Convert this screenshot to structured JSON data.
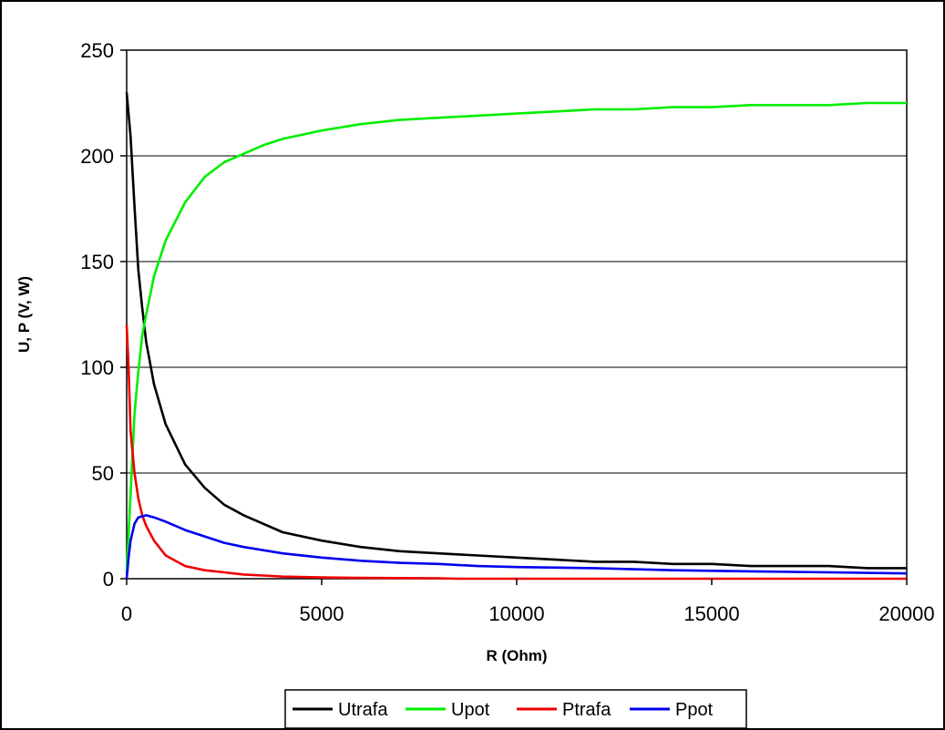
{
  "chart_data": {
    "type": "line",
    "title": "",
    "xlabel": "R (Ohm)",
    "ylabel": "U, P (V, W)",
    "xlim": [
      0,
      20000
    ],
    "ylim": [
      0,
      250
    ],
    "x_ticks": [
      "0",
      "5000",
      "10000",
      "15000",
      "20000"
    ],
    "y_ticks": [
      "0",
      "50",
      "100",
      "150",
      "200",
      "250"
    ],
    "grid": "horizontal",
    "legend_position": "bottom",
    "series": [
      {
        "name": "Utrafa",
        "color": "#000000",
        "points": [
          [
            0,
            230
          ],
          [
            100,
            209
          ],
          [
            200,
            176
          ],
          [
            300,
            146
          ],
          [
            400,
            128
          ],
          [
            500,
            112
          ],
          [
            700,
            92
          ],
          [
            1000,
            73
          ],
          [
            1500,
            54
          ],
          [
            2000,
            43
          ],
          [
            2500,
            35
          ],
          [
            3000,
            30
          ],
          [
            3500,
            26
          ],
          [
            4000,
            22
          ],
          [
            5000,
            18
          ],
          [
            6000,
            15
          ],
          [
            7000,
            13
          ],
          [
            8000,
            12
          ],
          [
            9000,
            11
          ],
          [
            10000,
            10
          ],
          [
            11000,
            9
          ],
          [
            12000,
            8
          ],
          [
            13000,
            8
          ],
          [
            14000,
            7
          ],
          [
            15000,
            7
          ],
          [
            16000,
            6
          ],
          [
            17000,
            6
          ],
          [
            18000,
            6
          ],
          [
            19000,
            5
          ],
          [
            20000,
            5
          ]
        ]
      },
      {
        "name": "Upot",
        "color": "#00ee00",
        "points": [
          [
            0,
            3
          ],
          [
            100,
            40
          ],
          [
            200,
            78
          ],
          [
            300,
            98
          ],
          [
            400,
            115
          ],
          [
            500,
            125
          ],
          [
            700,
            143
          ],
          [
            1000,
            160
          ],
          [
            1500,
            178
          ],
          [
            2000,
            190
          ],
          [
            2500,
            197
          ],
          [
            3000,
            201
          ],
          [
            3500,
            205
          ],
          [
            4000,
            208
          ],
          [
            5000,
            212
          ],
          [
            6000,
            215
          ],
          [
            7000,
            217
          ],
          [
            8000,
            218
          ],
          [
            9000,
            219
          ],
          [
            10000,
            220
          ],
          [
            11000,
            221
          ],
          [
            12000,
            222
          ],
          [
            13000,
            222
          ],
          [
            14000,
            223
          ],
          [
            15000,
            223
          ],
          [
            16000,
            224
          ],
          [
            17000,
            224
          ],
          [
            18000,
            224
          ],
          [
            19000,
            225
          ],
          [
            20000,
            225
          ]
        ]
      },
      {
        "name": "Ptrafa",
        "color": "#ee0000",
        "points": [
          [
            0,
            120
          ],
          [
            50,
            100
          ],
          [
            100,
            70
          ],
          [
            200,
            50
          ],
          [
            300,
            38
          ],
          [
            400,
            30
          ],
          [
            500,
            25
          ],
          [
            700,
            18
          ],
          [
            1000,
            11
          ],
          [
            1500,
            6
          ],
          [
            2000,
            4
          ],
          [
            2500,
            3
          ],
          [
            3000,
            2
          ],
          [
            3500,
            1.5
          ],
          [
            4000,
            1
          ],
          [
            5000,
            0.6
          ],
          [
            6000,
            0.4
          ],
          [
            7000,
            0.3
          ],
          [
            8000,
            0.2
          ],
          [
            8500,
            0
          ],
          [
            10000,
            0
          ],
          [
            15000,
            0
          ],
          [
            20000,
            0
          ]
        ]
      },
      {
        "name": "Ppot",
        "color": "#0000ee",
        "points": [
          [
            0,
            0
          ],
          [
            50,
            10
          ],
          [
            100,
            18
          ],
          [
            200,
            26
          ],
          [
            300,
            29
          ],
          [
            500,
            30
          ],
          [
            700,
            29
          ],
          [
            1000,
            27
          ],
          [
            1500,
            23
          ],
          [
            2000,
            20
          ],
          [
            2500,
            17
          ],
          [
            3000,
            15
          ],
          [
            4000,
            12
          ],
          [
            5000,
            10
          ],
          [
            6000,
            8.5
          ],
          [
            7000,
            7.5
          ],
          [
            8000,
            7
          ],
          [
            9000,
            6
          ],
          [
            10000,
            5.5
          ],
          [
            12000,
            5
          ],
          [
            14000,
            4
          ],
          [
            16000,
            3.5
          ],
          [
            18000,
            3
          ],
          [
            20000,
            2.5
          ]
        ]
      }
    ]
  }
}
